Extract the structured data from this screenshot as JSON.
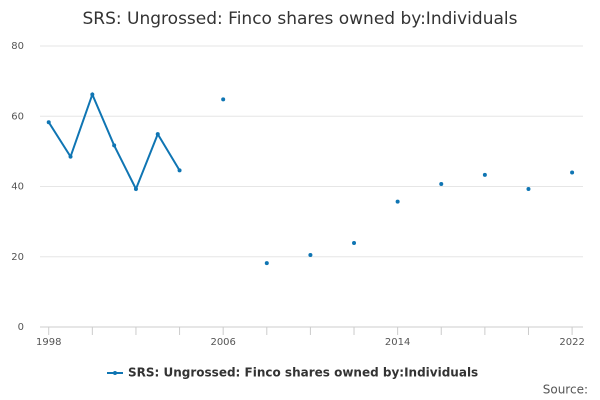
{
  "chart_data": {
    "type": "line",
    "title": "SRS: Ungrossed: Finco shares owned by:Individuals",
    "x": [
      1998,
      1999,
      2000,
      2001,
      2002,
      2003,
      2004,
      2005,
      2006,
      2007,
      2008,
      2009,
      2010,
      2011,
      2012,
      2013,
      2014,
      2015,
      2016,
      2017,
      2018,
      2019,
      2020,
      2021,
      2022
    ],
    "series": [
      {
        "name": "SRS: Ungrossed: Finco shares owned by:Individuals",
        "color": "#0f75b3",
        "values": [
          58.3,
          48.5,
          66.2,
          51.7,
          39.3,
          54.9,
          44.6,
          null,
          64.8,
          null,
          18.2,
          null,
          20.5,
          null,
          23.9,
          null,
          35.7,
          null,
          40.7,
          null,
          43.3,
          null,
          39.3,
          null,
          44.0
        ]
      }
    ],
    "xlim": [
      1997.6,
      2022.5
    ],
    "xticks": [
      1998,
      2006,
      2014,
      2022
    ],
    "xminorticks": [
      2000,
      2002,
      2004,
      2008,
      2010,
      2012,
      2016,
      2018,
      2020
    ],
    "ylim": [
      0,
      80
    ],
    "yticks": [
      0,
      20,
      40,
      60,
      80
    ],
    "grid": true,
    "source": "Source:"
  }
}
